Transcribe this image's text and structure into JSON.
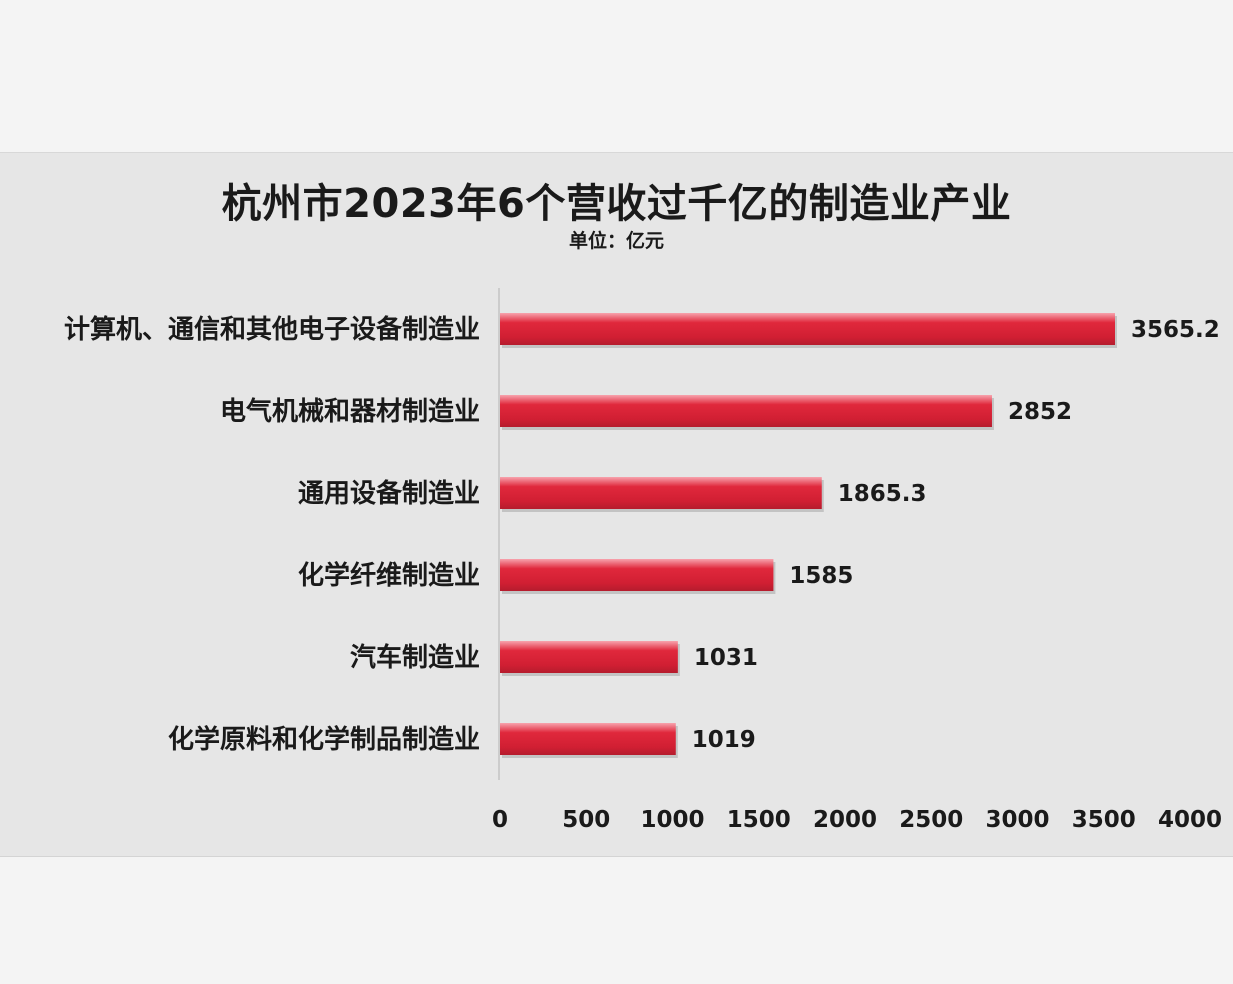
{
  "chart_data": {
    "type": "bar",
    "orientation": "horizontal",
    "title": "杭州市2023年6个营收过千亿的制造业产业",
    "subtitle": "单位：亿元",
    "categories": [
      "计算机、通信和其他电子设备制造业",
      "电气机械和器材制造业",
      "通用设备制造业",
      "化学纤维制造业",
      "汽车制造业",
      "化学原料和化学制品制造业"
    ],
    "values": [
      3565.2,
      2852,
      1865.3,
      1585,
      1031,
      1019
    ],
    "value_labels": [
      "3565.2",
      "2852",
      "1865.3",
      "1585",
      "1031",
      "1019"
    ],
    "xlim": [
      0,
      4000
    ],
    "xticks": [
      "0",
      "500",
      "1000",
      "1500",
      "2000",
      "2500",
      "3000",
      "3500",
      "4000"
    ],
    "grid": false,
    "colors": {
      "bar": "#e0283c",
      "bar_light": "#f7a3ad",
      "bar_dark": "#b51c2d",
      "background": "#e6e6e6"
    }
  }
}
